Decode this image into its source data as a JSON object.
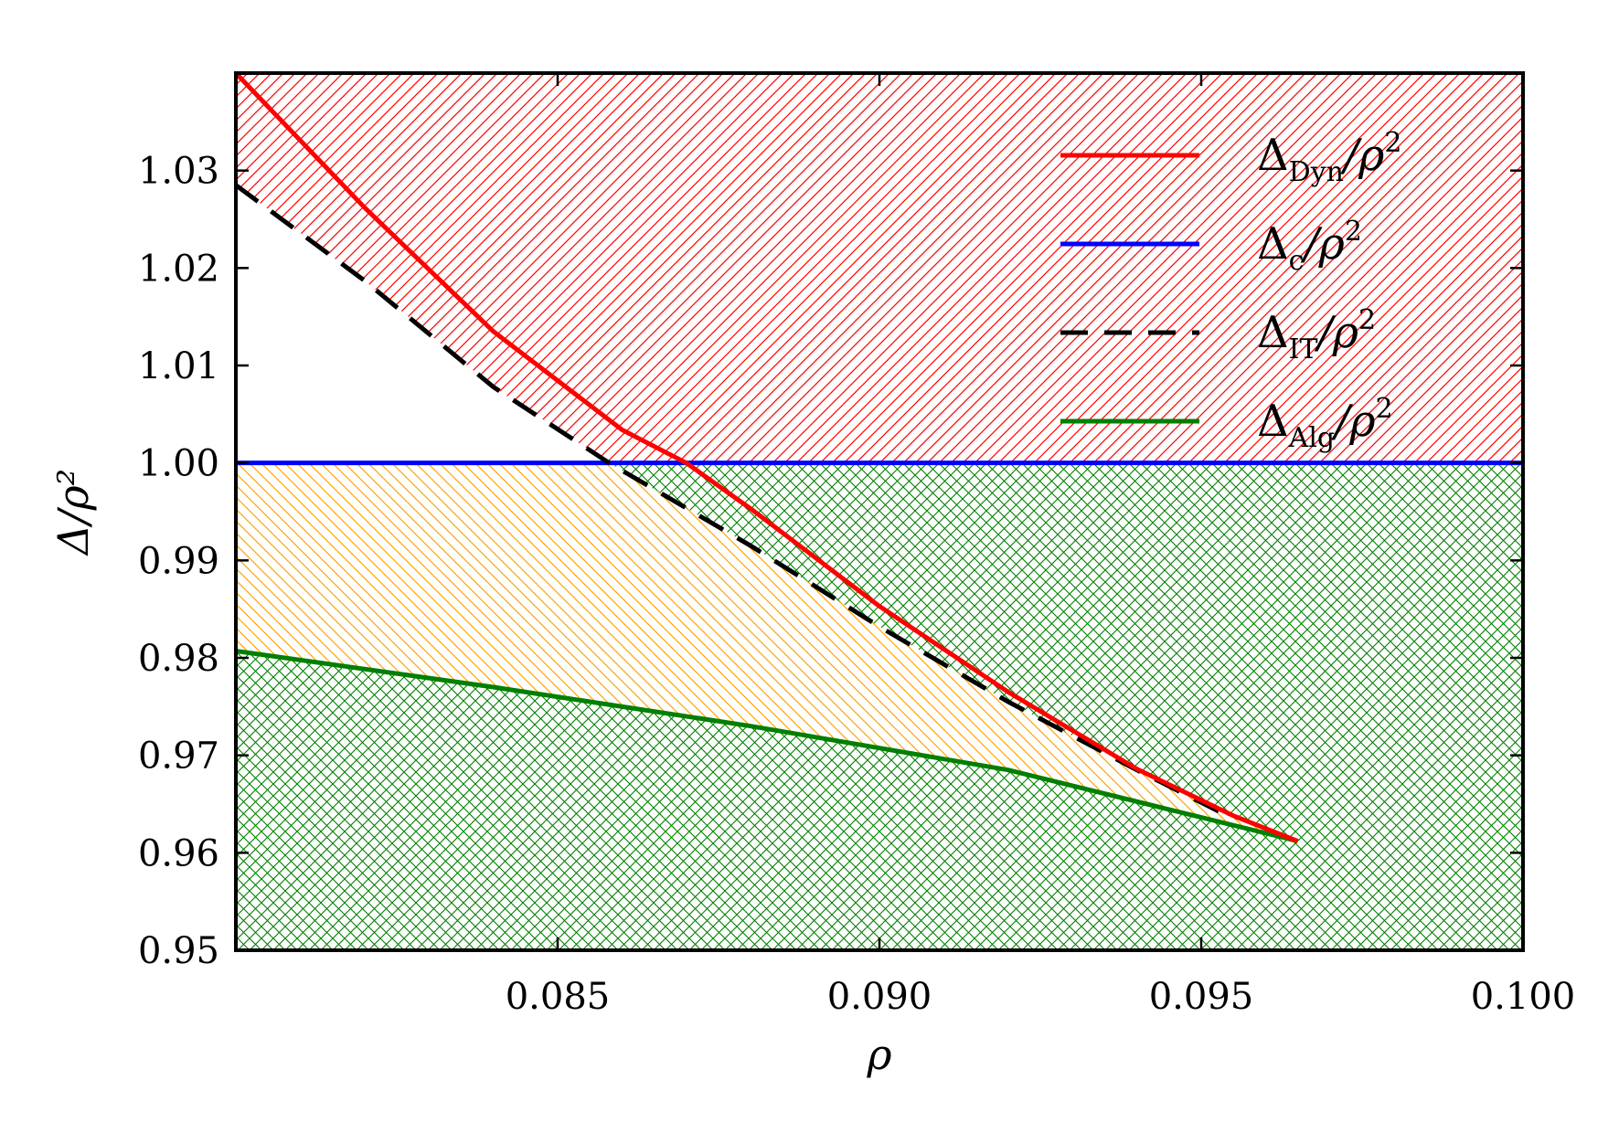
{
  "chart_data": {
    "type": "line",
    "title": "",
    "xlabel": "ρ",
    "ylabel": "Δ/ρ²",
    "xlim": [
      0.08,
      0.1
    ],
    "ylim": [
      0.95,
      1.04
    ],
    "grid": false,
    "legend_position": "top-right",
    "x_ticks": [
      {
        "value": 0.085,
        "label": "0.085"
      },
      {
        "value": 0.09,
        "label": "0.090"
      },
      {
        "value": 0.095,
        "label": "0.095"
      },
      {
        "value": 0.1,
        "label": "0.100"
      }
    ],
    "y_ticks": [
      {
        "value": 0.95,
        "label": "0.95"
      },
      {
        "value": 0.96,
        "label": "0.96"
      },
      {
        "value": 0.97,
        "label": "0.97"
      },
      {
        "value": 0.98,
        "label": "0.98"
      },
      {
        "value": 0.99,
        "label": "0.99"
      },
      {
        "value": 1.0,
        "label": "1.00"
      },
      {
        "value": 1.01,
        "label": "1.01"
      },
      {
        "value": 1.02,
        "label": "1.02"
      },
      {
        "value": 1.03,
        "label": "1.03"
      }
    ],
    "series": [
      {
        "name": "Δ_Dyn/ρ²",
        "legend_base": "Δ",
        "legend_sub": "Dyn",
        "legend_tail": "/ρ",
        "legend_sup": "2",
        "color": "#ff0000",
        "dash": "solid",
        "x": [
          0.08,
          0.082,
          0.084,
          0.086,
          0.087,
          0.088,
          0.09,
          0.092,
          0.094,
          0.0955,
          0.0965
        ],
        "y": [
          1.04,
          1.0262,
          1.0135,
          1.0034,
          1.0,
          0.9953,
          0.9853,
          0.9765,
          0.9686,
          0.9638,
          0.9612
        ]
      },
      {
        "name": "Δ_c/ρ²",
        "legend_base": "Δ",
        "legend_sub": "c",
        "legend_tail": "/ρ",
        "legend_sup": "2",
        "color": "#0000ff",
        "dash": "solid",
        "x": [
          0.08,
          0.1
        ],
        "y": [
          1.0,
          1.0
        ]
      },
      {
        "name": "Δ_IT/ρ²",
        "legend_base": "Δ",
        "legend_sub": "IT",
        "legend_tail": "/ρ",
        "legend_sup": "2",
        "color": "#000000",
        "dash": "dashed",
        "x": [
          0.08,
          0.082,
          0.084,
          0.0858,
          0.088,
          0.09,
          0.092,
          0.094,
          0.0955
        ],
        "y": [
          1.0285,
          1.0187,
          1.0078,
          1.0,
          0.9915,
          0.9832,
          0.9755,
          0.9685,
          0.9635
        ]
      },
      {
        "name": "Δ_Alg/ρ²",
        "legend_base": "Δ",
        "legend_sub": "Alg",
        "legend_tail": "/ρ",
        "legend_sup": "2",
        "color": "#007f00",
        "dash": "solid",
        "x": [
          0.08,
          0.084,
          0.088,
          0.092,
          0.0965
        ],
        "y": [
          0.9807,
          0.977,
          0.973,
          0.9685,
          0.9612
        ]
      }
    ],
    "regions": [
      {
        "color": "#ff0000",
        "hatch": "diagonal-right",
        "bounds": "above Δ_IT/ρ² and above Δ_c/ρ²"
      },
      {
        "color": "#ffa500",
        "hatch": "diagonal-left",
        "bounds": "between Δ_Alg/ρ² and Δ_IT/ρ², below Δ_c/ρ²"
      },
      {
        "color": "#007f00",
        "hatch": "crosshatch",
        "bounds": "below Δ_Alg/ρ² and between Δ_IT/ρ² and Δ_c/ρ²"
      }
    ]
  }
}
